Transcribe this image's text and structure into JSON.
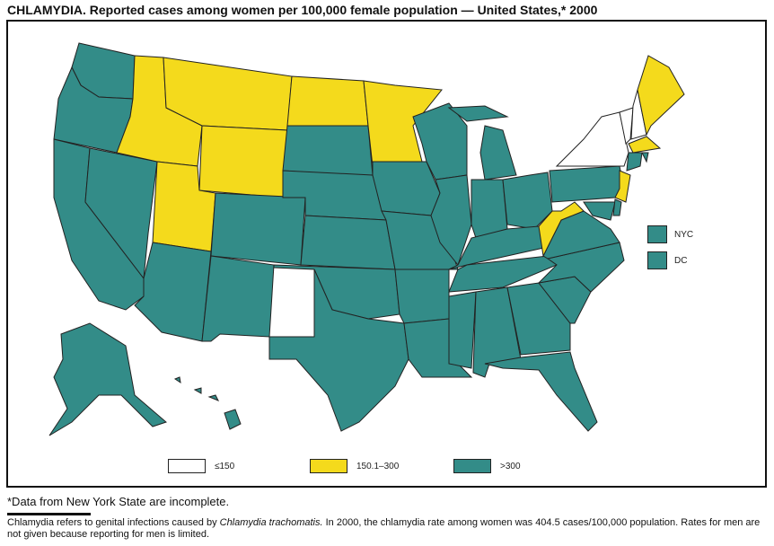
{
  "title": "CHLAMYDIA. Reported cases among women per 100,000 female population — United States,* 2000",
  "legend": [
    {
      "label": "≤150",
      "color": "#ffffff"
    },
    {
      "label": "150.1–300",
      "color": "#f4da1c"
    },
    {
      "label": ">300",
      "color": "#338c88"
    }
  ],
  "insets": [
    {
      "label": "NYC",
      "category": 2
    },
    {
      "label": "DC",
      "category": 2
    }
  ],
  "states": {
    "WA": 2,
    "OR": 2,
    "CA": 2,
    "NV": 2,
    "ID": 1,
    "MT": 1,
    "WY": 1,
    "UT": 1,
    "CO": 2,
    "AZ": 2,
    "NM": 2,
    "ND": 1,
    "SD": 2,
    "NE": 2,
    "KS": 2,
    "OK": 2,
    "TX": 2,
    "MN": 1,
    "IA": 2,
    "MO": 2,
    "AR": 2,
    "LA": 2,
    "WI": 2,
    "IL": 2,
    "MI": 2,
    "IN": 2,
    "OH": 2,
    "KY": 2,
    "TN": 2,
    "MS": 2,
    "AL": 2,
    "GA": 2,
    "FL": 2,
    "SC": 2,
    "NC": 2,
    "VA": 2,
    "WV": 1,
    "PA": 2,
    "NY": 0,
    "VT": 0,
    "NH": 0,
    "ME": 1,
    "MA": 1,
    "CT": 2,
    "RI": 2,
    "NJ": 1,
    "MD": 2,
    "DE": 2,
    "AK": 2,
    "HI": 2
  },
  "footnote": "*Data from New York State are incomplete.",
  "note_pre": "Chlamydia refers to genital infections caused by ",
  "note_italic": "Chlamydia trachomatis.",
  "note_post": " In 2000, the chlamydia rate among women was 404.5 cases/100,000 population. Rates for men are not given because reporting for men is limited."
}
